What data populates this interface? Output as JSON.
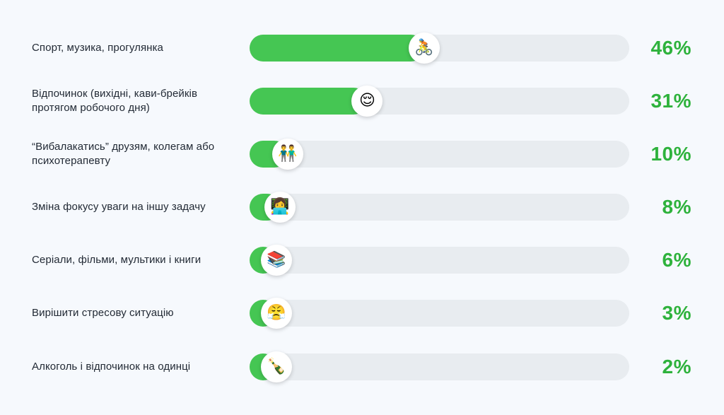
{
  "chart_data": {
    "type": "bar",
    "orientation": "horizontal",
    "categories": [
      "Спорт, музика, прогулянка",
      "Відпочинок (вихідні, кави-брейків протягом робочого дня)",
      "“Вибалакатись” друзям, колегам або психотерапевту",
      "Зміна фокусу уваги на іншу задачу",
      "Серіали, фільми, мультики і книги",
      "Вирішити стресову ситуацію",
      "Алкоголь і відпочинок на одинці"
    ],
    "values": [
      46,
      31,
      10,
      8,
      6,
      3,
      2
    ],
    "value_labels": [
      "46%",
      "31%",
      "10%",
      "8%",
      "6%",
      "3%",
      "2%"
    ],
    "icons": [
      "cyclist-icon",
      "relaxing-person-icon",
      "two-people-icon",
      "person-at-laptop-icon",
      "books-icon",
      "angry-face-icon",
      "bottle-icon"
    ],
    "icon_glyphs": [
      "🚴",
      "😌",
      "👬",
      "👩‍💻",
      "📚",
      "😤",
      "🍾"
    ],
    "xlim": [
      0,
      100
    ],
    "colors": {
      "fill": "#45c653",
      "track": "#e8ecf0",
      "value_text": "#2eb23c",
      "background": "#f6f9fd"
    },
    "grid": false
  }
}
